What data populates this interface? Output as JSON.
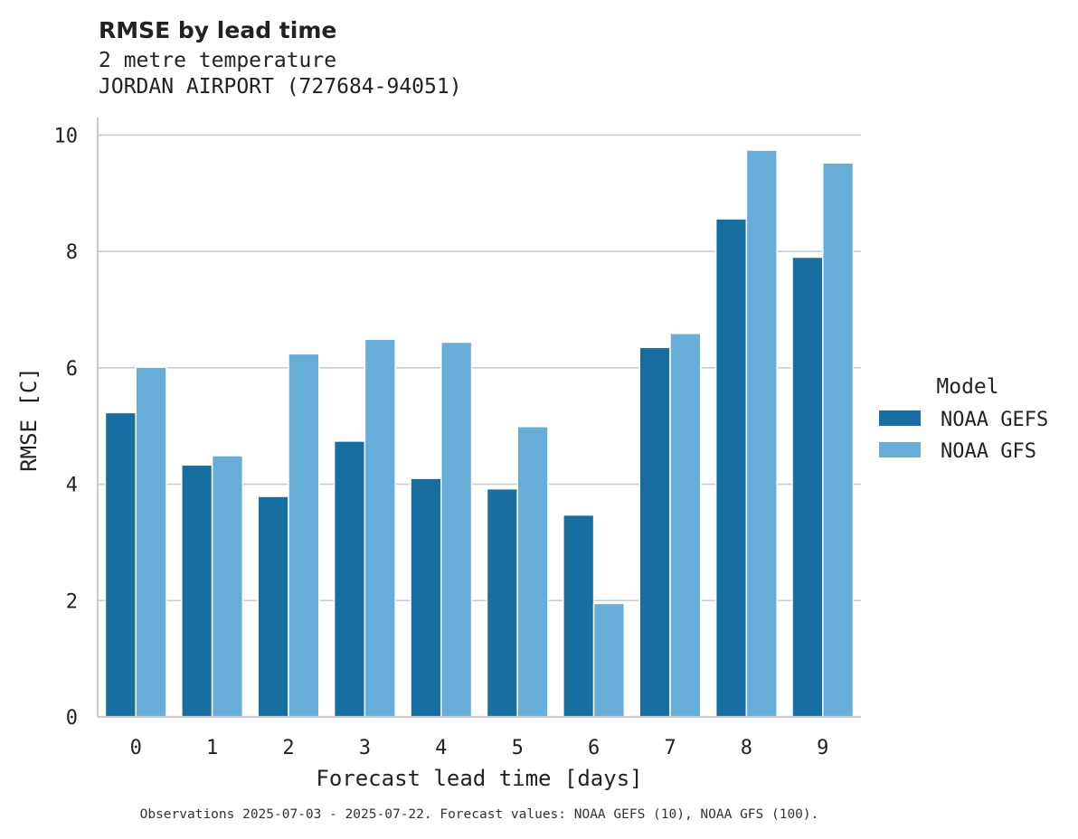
{
  "chart_data": {
    "type": "bar",
    "title": "RMSE by lead time",
    "subtitle_lines": [
      "2 metre temperature",
      "JORDAN AIRPORT (727684-94051)"
    ],
    "xlabel": "Forecast lead time [days]",
    "ylabel": "RMSE [C]",
    "categories": [
      "0",
      "1",
      "2",
      "3",
      "4",
      "5",
      "6",
      "7",
      "8",
      "9"
    ],
    "ylim": [
      0,
      10.3
    ],
    "yticks": [
      0,
      2,
      4,
      6,
      8,
      10
    ],
    "grid": "horizontal",
    "legend_title": "Model",
    "legend_position": "right",
    "series": [
      {
        "name": "NOAA GEFS",
        "color": "#176fa1",
        "values": [
          5.23,
          4.33,
          3.79,
          4.74,
          4.1,
          3.92,
          3.47,
          6.35,
          8.56,
          7.9
        ]
      },
      {
        "name": "NOAA GFS",
        "color": "#66aed8",
        "values": [
          6.01,
          4.49,
          6.24,
          6.49,
          6.44,
          4.99,
          1.95,
          6.59,
          9.74,
          9.52
        ]
      }
    ],
    "footnote": "Observations 2025-07-03 - 2025-07-22. Forecast values: NOAA GEFS (10), NOAA GFS (100)."
  }
}
